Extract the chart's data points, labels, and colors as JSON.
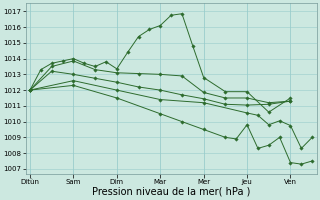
{
  "background_color": "#cce8e0",
  "grid_color": "#99cccc",
  "line_color": "#2d6b2d",
  "marker_color": "#2d6b2d",
  "xlabel": "Pression niveau de la mer( hPa )",
  "xlabel_fontsize": 7,
  "yticks": [
    1007,
    1008,
    1009,
    1010,
    1011,
    1012,
    1013,
    1014,
    1015,
    1016,
    1017
  ],
  "ylim": [
    1006.7,
    1017.5
  ],
  "x_labels": [
    "Ditùn",
    "Sam",
    "Dim",
    "Mar",
    "Mer",
    "Jeu",
    "Ven"
  ],
  "day_x": [
    0,
    2,
    4,
    6,
    8,
    10,
    12
  ],
  "xlim": [
    -0.2,
    13.2
  ],
  "series": [
    {
      "x": [
        0,
        0.5,
        1,
        1.5,
        2,
        2.5,
        3,
        3.5,
        4,
        4.5,
        5,
        5.5,
        6,
        6.5,
        7,
        7.5,
        8,
        9,
        10,
        11,
        12
      ],
      "y": [
        1012.0,
        1013.3,
        1013.7,
        1013.85,
        1014.0,
        1013.7,
        1013.5,
        1013.8,
        1013.35,
        1014.4,
        1015.4,
        1015.85,
        1016.1,
        1016.75,
        1016.85,
        1014.8,
        1012.8,
        1011.9,
        1011.9,
        1010.6,
        1011.5
      ]
    },
    {
      "x": [
        0,
        1,
        2,
        3,
        4,
        5,
        6,
        7,
        8,
        9,
        10,
        11,
        12
      ],
      "y": [
        1012.0,
        1013.5,
        1013.85,
        1013.3,
        1013.1,
        1013.05,
        1013.0,
        1012.9,
        1011.85,
        1011.5,
        1011.5,
        1011.2,
        1011.3
      ]
    },
    {
      "x": [
        0,
        1,
        2,
        3,
        4,
        5,
        6,
        7,
        8,
        9,
        10,
        11,
        12
      ],
      "y": [
        1012.0,
        1013.2,
        1013.0,
        1012.75,
        1012.5,
        1012.2,
        1012.0,
        1011.7,
        1011.45,
        1011.1,
        1011.05,
        1011.1,
        1011.3
      ]
    },
    {
      "x": [
        0,
        2,
        4,
        6,
        8,
        10,
        10.5,
        11,
        11.5,
        12,
        12.5,
        13
      ],
      "y": [
        1012.0,
        1012.6,
        1012.0,
        1011.4,
        1011.2,
        1010.55,
        1010.4,
        1009.8,
        1010.05,
        1009.75,
        1008.3,
        1009.0
      ]
    },
    {
      "x": [
        0,
        2,
        4,
        6,
        7,
        8,
        9,
        9.5,
        10,
        10.5,
        11,
        11.5,
        12,
        12.5,
        13
      ],
      "y": [
        1012.0,
        1012.3,
        1011.5,
        1010.5,
        1010.0,
        1009.5,
        1009.0,
        1008.9,
        1009.8,
        1008.3,
        1008.5,
        1009.0,
        1007.4,
        1007.3,
        1007.5
      ]
    }
  ]
}
